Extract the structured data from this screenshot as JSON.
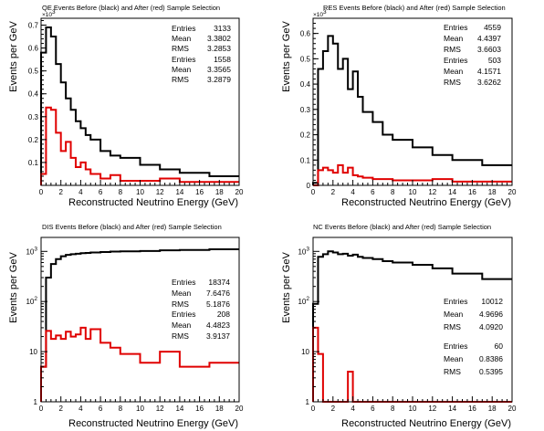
{
  "chart_data": [
    {
      "type": "line",
      "title": "QE Events Before (black) and After (red) Sample Selection",
      "xlabel": "Reconstructed Neutrino Energy (GeV)",
      "ylabel": "Events per GeV",
      "xlim": [
        0,
        20
      ],
      "ylim": [
        0,
        0.73
      ],
      "yscale": "linear",
      "y_multiplier": "×10",
      "y_multiplier_exp": "3",
      "x_ticks": [
        "0",
        "2",
        "4",
        "6",
        "8",
        "10",
        "12",
        "14",
        "16",
        "18",
        "20"
      ],
      "y_ticks": [
        "0.1",
        "0.2",
        "0.3",
        "0.4",
        "0.5",
        "0.6",
        "0.7"
      ],
      "series": [
        {
          "color": "#000000",
          "bin_edges": [
            0,
            0.5,
            1,
            1.5,
            2,
            2.5,
            3,
            3.5,
            4,
            4.5,
            5,
            6,
            7,
            8,
            10,
            12,
            14,
            17,
            20
          ],
          "values": [
            0.58,
            0.69,
            0.65,
            0.53,
            0.45,
            0.38,
            0.33,
            0.28,
            0.25,
            0.22,
            0.2,
            0.15,
            0.13,
            0.12,
            0.09,
            0.07,
            0.055,
            0.04
          ]
        },
        {
          "color": "#e00000",
          "bin_edges": [
            0,
            0.5,
            1,
            1.5,
            2,
            2.5,
            3,
            3.5,
            4,
            4.5,
            5,
            6,
            7,
            8,
            10,
            12,
            14,
            17,
            20
          ],
          "values": [
            0.05,
            0.34,
            0.33,
            0.23,
            0.15,
            0.19,
            0.12,
            0.08,
            0.1,
            0.07,
            0.05,
            0.03,
            0.045,
            0.02,
            0.02,
            0.03,
            0.015,
            0.015
          ]
        }
      ],
      "stats": [
        {
          "entries_label": "Entries",
          "entries": "3133",
          "mean_label": "Mean",
          "mean": "3.3802",
          "rms_label": "RMS",
          "rms": "3.2853"
        },
        {
          "entries_label": "Entries",
          "entries": "1558",
          "mean_label": "Mean",
          "mean": "3.3565",
          "rms_label": "RMS",
          "rms": "3.2879"
        }
      ]
    },
    {
      "type": "line",
      "title": "RES Events Before (black) and After (red) Sample Selection",
      "xlabel": "Reconstructed Neutrino Energy (GeV)",
      "ylabel": "Events per GeV",
      "xlim": [
        0,
        20
      ],
      "ylim": [
        0,
        0.66
      ],
      "yscale": "linear",
      "y_multiplier": "×10",
      "y_multiplier_exp": "3",
      "x_ticks": [
        "0",
        "2",
        "4",
        "6",
        "8",
        "10",
        "12",
        "14",
        "16",
        "18",
        "20"
      ],
      "y_ticks": [
        "0",
        "0.1",
        "0.2",
        "0.3",
        "0.4",
        "0.5",
        "0.6"
      ],
      "series": [
        {
          "color": "#000000",
          "bin_edges": [
            0,
            0.5,
            1,
            1.5,
            2,
            2.5,
            3,
            3.5,
            4,
            4.5,
            5,
            6,
            7,
            8,
            10,
            12,
            14,
            17,
            20
          ],
          "values": [
            0.01,
            0.46,
            0.53,
            0.59,
            0.56,
            0.46,
            0.5,
            0.38,
            0.45,
            0.35,
            0.29,
            0.25,
            0.2,
            0.18,
            0.15,
            0.12,
            0.1,
            0.08
          ]
        },
        {
          "color": "#e00000",
          "bin_edges": [
            0,
            0.5,
            1,
            1.5,
            2,
            2.5,
            3,
            3.5,
            4,
            4.5,
            5,
            6,
            7,
            8,
            10,
            12,
            14,
            17,
            20
          ],
          "values": [
            0.0,
            0.06,
            0.07,
            0.06,
            0.05,
            0.08,
            0.05,
            0.07,
            0.04,
            0.035,
            0.03,
            0.025,
            0.025,
            0.02,
            0.02,
            0.025,
            0.015,
            0.015
          ]
        }
      ],
      "stats": [
        {
          "entries_label": "Entries",
          "entries": "4559",
          "mean_label": "Mean",
          "mean": "4.4397",
          "rms_label": "RMS",
          "rms": "3.6603"
        },
        {
          "entries_label": "Entries",
          "entries": "503",
          "mean_label": "Mean",
          "mean": "4.1571",
          "rms_label": "RMS",
          "rms": "3.6262"
        }
      ]
    },
    {
      "type": "line",
      "title": "DIS Events Before (black) and After (red) Sample Selection",
      "xlabel": "Reconstructed Neutrino Energy (GeV)",
      "ylabel": "Events per GeV",
      "xlim": [
        0,
        20
      ],
      "ylim": [
        1,
        1900
      ],
      "yscale": "log",
      "x_ticks": [
        "0",
        "2",
        "4",
        "6",
        "8",
        "10",
        "12",
        "14",
        "16",
        "18",
        "20"
      ],
      "y_ticks": [
        {
          "base": "1",
          "exp": ""
        },
        {
          "base": "10",
          "exp": ""
        },
        {
          "base": "10",
          "exp": "2"
        },
        {
          "base": "10",
          "exp": "3"
        }
      ],
      "series": [
        {
          "color": "#000000",
          "bin_edges": [
            0,
            0.5,
            1,
            1.5,
            2,
            2.5,
            3,
            3.5,
            4,
            4.5,
            5,
            6,
            7,
            8,
            10,
            12,
            14,
            17,
            20
          ],
          "values": [
            5,
            300,
            560,
            700,
            800,
            850,
            880,
            900,
            920,
            930,
            950,
            970,
            990,
            1000,
            1020,
            1050,
            1070,
            1100
          ]
        },
        {
          "color": "#e00000",
          "bin_edges": [
            0,
            0.5,
            1,
            1.5,
            2,
            2.5,
            3,
            3.5,
            4,
            4.5,
            5,
            6,
            7,
            8,
            10,
            12,
            14,
            17,
            20
          ],
          "values": [
            5,
            26,
            18,
            21,
            18,
            25,
            20,
            22,
            30,
            18,
            28,
            15,
            12,
            9,
            6,
            10,
            5,
            6
          ]
        }
      ],
      "stats": [
        {
          "entries_label": "Entries",
          "entries": "18374",
          "mean_label": "Mean",
          "mean": "7.6476",
          "rms_label": "RMS",
          "rms": "5.1876"
        },
        {
          "entries_label": "Entries",
          "entries": "208",
          "mean_label": "Mean",
          "mean": "4.4823",
          "rms_label": "RMS",
          "rms": "3.9137"
        }
      ]
    },
    {
      "type": "line",
      "title": "NC Events Before (black) and After (red) Sample Selection",
      "xlabel": "Reconstructed Neutrino Energy (GeV)",
      "ylabel": "Events per GeV",
      "xlim": [
        0,
        20
      ],
      "ylim": [
        1,
        1900
      ],
      "yscale": "log",
      "x_ticks": [
        "0",
        "2",
        "4",
        "6",
        "8",
        "10",
        "12",
        "14",
        "16",
        "18",
        "20"
      ],
      "y_ticks": [
        {
          "base": "1",
          "exp": ""
        },
        {
          "base": "10",
          "exp": ""
        },
        {
          "base": "10",
          "exp": "2"
        },
        {
          "base": "10",
          "exp": "3"
        }
      ],
      "series": [
        {
          "color": "#000000",
          "bin_edges": [
            0,
            0.5,
            1,
            1.5,
            2,
            2.5,
            3,
            3.5,
            4,
            4.5,
            5,
            6,
            7,
            8,
            10,
            12,
            14,
            17,
            20
          ],
          "values": [
            90,
            780,
            880,
            1000,
            950,
            880,
            900,
            820,
            860,
            780,
            740,
            700,
            640,
            600,
            540,
            460,
            360,
            280
          ]
        },
        {
          "color": "#e00000",
          "bin_edges": [
            0,
            0.5,
            1,
            1.5,
            2,
            2.5,
            3,
            3.5,
            4,
            4.5,
            5,
            6,
            7,
            8,
            10,
            12,
            14,
            17,
            20
          ],
          "values": [
            30,
            9,
            1,
            1,
            1,
            1,
            1,
            4,
            1,
            1,
            1,
            1,
            1,
            1,
            1,
            1,
            1,
            1
          ]
        }
      ],
      "stats": [
        {
          "entries_label": "Entries",
          "entries": "10012",
          "mean_label": "Mean",
          "mean": "4.9696",
          "rms_label": "RMS",
          "rms": "4.0920"
        },
        {
          "entries_label": "Entries",
          "entries": "60",
          "mean_label": "Mean",
          "mean": "0.8386",
          "rms_label": "RMS",
          "rms": "0.5395"
        }
      ]
    }
  ]
}
